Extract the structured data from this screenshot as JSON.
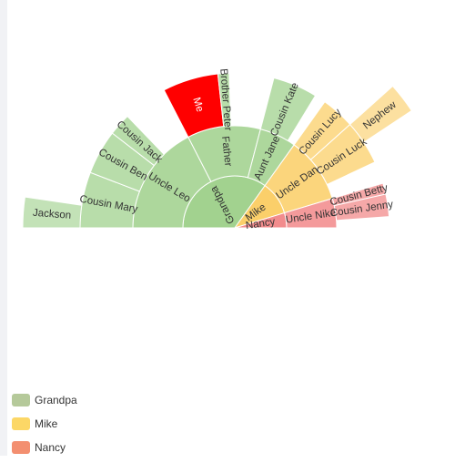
{
  "chart_data": {
    "type": "sunburst",
    "center": "Grandpa",
    "legend": {
      "placement": "bottom-left",
      "items": [
        {
          "name": "Grandpa",
          "color": "#b5c99a"
        },
        {
          "name": "Mike",
          "color": "#fcd766"
        },
        {
          "name": "Nancy",
          "color": "#f38f70"
        }
      ]
    },
    "tree": [
      {
        "name": "Grandpa",
        "color": "#a2d28f",
        "children": [
          {
            "name": "Uncle Leo",
            "value": 15,
            "children": [
              {
                "name": "Cousin Mary",
                "value": 5,
                "children": [
                  {
                    "name": "Jackson",
                    "value": 2
                  }
                ]
              },
              {
                "name": "Cousin Ben",
                "value": 4
              },
              {
                "name": "Cousin Jack",
                "value": 2
              }
            ]
          },
          {
            "name": "Father",
            "value": 10,
            "children": [
              {
                "name": "Me",
                "value": 5,
                "color": "#ff0000"
              },
              {
                "name": "Brother Peter",
                "value": 1
              }
            ]
          },
          {
            "name": "Aunt Jane",
            "value": 5,
            "children": [
              {
                "name": "Cousin Kate",
                "value": 4
              }
            ]
          }
        ]
      },
      {
        "name": "Mike",
        "color": "#fbcf6a",
        "children": [
          {
            "name": "Uncle Dan",
            "value": 9,
            "children": [
              {
                "name": "Cousin Lucy",
                "value": 3
              },
              {
                "name": "Cousin Luck",
                "value": 4,
                "children": [
                  {
                    "name": "Nephew",
                    "value": 2
                  }
                ]
              }
            ]
          }
        ]
      },
      {
        "name": "Nancy",
        "color": "#f28c8d",
        "children": [
          {
            "name": "Uncle Nike",
            "value": 4,
            "children": [
              {
                "name": "Cousin Betty",
                "value": 1
              },
              {
                "name": "Cousin Jenny",
                "value": 2
              }
            ]
          }
        ]
      }
    ]
  }
}
